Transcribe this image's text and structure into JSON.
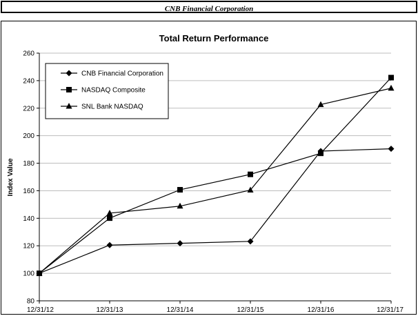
{
  "header": {
    "title": "CNB Financial Corporation"
  },
  "chart_data": {
    "type": "line",
    "title": "Total Return Performance",
    "xlabel": "",
    "ylabel": "Index Value",
    "categories": [
      "12/31/12",
      "12/31/13",
      "12/31/14",
      "12/31/15",
      "12/31/16",
      "12/31/17"
    ],
    "ylim": [
      80,
      260
    ],
    "yticks": [
      80,
      100,
      120,
      140,
      160,
      180,
      200,
      220,
      240,
      260
    ],
    "grid": true,
    "legend_position": "top-left",
    "series": [
      {
        "name": "CNB Financial Corporation",
        "marker": "diamond",
        "values": [
          100,
          120.5,
          121.8,
          123.2,
          188.8,
          190.5
        ]
      },
      {
        "name": "NASDAQ Composite",
        "marker": "square",
        "values": [
          100,
          140.1,
          160.7,
          171.9,
          187.2,
          242.2
        ]
      },
      {
        "name": "SNL Bank NASDAQ",
        "marker": "triangle",
        "values": [
          100,
          143.7,
          148.8,
          160.5,
          222.6,
          234.5
        ]
      }
    ],
    "colors": {
      "line": "#000000",
      "grid": "#bdbdbd"
    }
  }
}
